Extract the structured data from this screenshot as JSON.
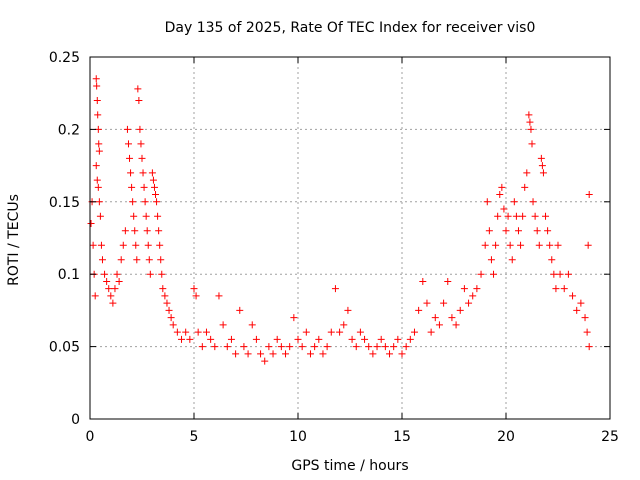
{
  "chart_data": {
    "type": "scatter",
    "title": "Day 135 of 2025, Rate Of TEC Index for receiver vis0",
    "xlabel": "GPS time / hours",
    "ylabel": "ROTI / TECUs",
    "xlim": [
      0,
      25
    ],
    "ylim": [
      0,
      0.25
    ],
    "xticks": [
      "0",
      "5",
      "10",
      "15",
      "20",
      "25"
    ],
    "yticks": [
      "0",
      "0.05",
      "0.1",
      "0.15",
      "0.2",
      "0.25"
    ],
    "grid": true,
    "legend": "none",
    "marker": "+",
    "color": "#ff0000",
    "points": [
      [
        0.05,
        0.135
      ],
      [
        0.1,
        0.15
      ],
      [
        0.15,
        0.12
      ],
      [
        0.2,
        0.1
      ],
      [
        0.25,
        0.085
      ],
      [
        0.3,
        0.235
      ],
      [
        0.32,
        0.23
      ],
      [
        0.35,
        0.22
      ],
      [
        0.37,
        0.21
      ],
      [
        0.4,
        0.2
      ],
      [
        0.42,
        0.19
      ],
      [
        0.45,
        0.185
      ],
      [
        0.3,
        0.175
      ],
      [
        0.35,
        0.165
      ],
      [
        0.4,
        0.16
      ],
      [
        0.45,
        0.15
      ],
      [
        0.5,
        0.14
      ],
      [
        0.55,
        0.12
      ],
      [
        0.6,
        0.11
      ],
      [
        0.7,
        0.1
      ],
      [
        0.8,
        0.095
      ],
      [
        0.9,
        0.09
      ],
      [
        1.0,
        0.085
      ],
      [
        1.1,
        0.08
      ],
      [
        1.2,
        0.09
      ],
      [
        1.3,
        0.1
      ],
      [
        1.4,
        0.095
      ],
      [
        1.5,
        0.11
      ],
      [
        1.6,
        0.12
      ],
      [
        1.7,
        0.13
      ],
      [
        1.8,
        0.2
      ],
      [
        1.85,
        0.19
      ],
      [
        1.9,
        0.18
      ],
      [
        1.95,
        0.17
      ],
      [
        2.0,
        0.16
      ],
      [
        2.05,
        0.15
      ],
      [
        2.1,
        0.14
      ],
      [
        2.15,
        0.13
      ],
      [
        2.2,
        0.12
      ],
      [
        2.25,
        0.11
      ],
      [
        2.3,
        0.228
      ],
      [
        2.35,
        0.22
      ],
      [
        2.4,
        0.2
      ],
      [
        2.45,
        0.19
      ],
      [
        2.5,
        0.18
      ],
      [
        2.55,
        0.17
      ],
      [
        2.6,
        0.16
      ],
      [
        2.65,
        0.15
      ],
      [
        2.7,
        0.14
      ],
      [
        2.75,
        0.13
      ],
      [
        2.8,
        0.12
      ],
      [
        2.85,
        0.11
      ],
      [
        2.9,
        0.1
      ],
      [
        3.0,
        0.17
      ],
      [
        3.05,
        0.165
      ],
      [
        3.1,
        0.16
      ],
      [
        3.15,
        0.155
      ],
      [
        3.2,
        0.15
      ],
      [
        3.25,
        0.14
      ],
      [
        3.3,
        0.13
      ],
      [
        3.35,
        0.12
      ],
      [
        3.4,
        0.11
      ],
      [
        3.45,
        0.1
      ],
      [
        3.5,
        0.09
      ],
      [
        3.6,
        0.085
      ],
      [
        3.7,
        0.08
      ],
      [
        3.8,
        0.075
      ],
      [
        3.9,
        0.07
      ],
      [
        4.0,
        0.065
      ],
      [
        4.2,
        0.06
      ],
      [
        4.4,
        0.055
      ],
      [
        4.6,
        0.06
      ],
      [
        4.8,
        0.055
      ],
      [
        5.0,
        0.09
      ],
      [
        5.1,
        0.085
      ],
      [
        5.2,
        0.06
      ],
      [
        5.4,
        0.05
      ],
      [
        5.6,
        0.06
      ],
      [
        5.8,
        0.055
      ],
      [
        6.0,
        0.05
      ],
      [
        6.2,
        0.085
      ],
      [
        6.4,
        0.065
      ],
      [
        6.6,
        0.05
      ],
      [
        6.8,
        0.055
      ],
      [
        7.0,
        0.045
      ],
      [
        7.2,
        0.075
      ],
      [
        7.4,
        0.05
      ],
      [
        7.6,
        0.045
      ],
      [
        7.8,
        0.065
      ],
      [
        8.0,
        0.055
      ],
      [
        8.2,
        0.045
      ],
      [
        8.4,
        0.04
      ],
      [
        8.6,
        0.05
      ],
      [
        8.8,
        0.045
      ],
      [
        9.0,
        0.055
      ],
      [
        9.2,
        0.05
      ],
      [
        9.4,
        0.045
      ],
      [
        9.6,
        0.05
      ],
      [
        9.8,
        0.07
      ],
      [
        10.0,
        0.055
      ],
      [
        10.2,
        0.05
      ],
      [
        10.4,
        0.06
      ],
      [
        10.6,
        0.045
      ],
      [
        10.8,
        0.05
      ],
      [
        11.0,
        0.055
      ],
      [
        11.2,
        0.045
      ],
      [
        11.4,
        0.05
      ],
      [
        11.6,
        0.06
      ],
      [
        11.8,
        0.09
      ],
      [
        12.0,
        0.06
      ],
      [
        12.2,
        0.065
      ],
      [
        12.4,
        0.075
      ],
      [
        12.6,
        0.055
      ],
      [
        12.8,
        0.05
      ],
      [
        13.0,
        0.06
      ],
      [
        13.2,
        0.055
      ],
      [
        13.4,
        0.05
      ],
      [
        13.6,
        0.045
      ],
      [
        13.8,
        0.05
      ],
      [
        14.0,
        0.055
      ],
      [
        14.2,
        0.05
      ],
      [
        14.4,
        0.045
      ],
      [
        14.6,
        0.05
      ],
      [
        14.8,
        0.055
      ],
      [
        15.0,
        0.045
      ],
      [
        15.2,
        0.05
      ],
      [
        15.4,
        0.055
      ],
      [
        15.6,
        0.06
      ],
      [
        15.8,
        0.075
      ],
      [
        16.0,
        0.095
      ],
      [
        16.2,
        0.08
      ],
      [
        16.4,
        0.06
      ],
      [
        16.6,
        0.07
      ],
      [
        16.8,
        0.065
      ],
      [
        17.0,
        0.08
      ],
      [
        17.2,
        0.095
      ],
      [
        17.4,
        0.07
      ],
      [
        17.6,
        0.065
      ],
      [
        17.8,
        0.075
      ],
      [
        18.0,
        0.09
      ],
      [
        18.2,
        0.08
      ],
      [
        18.4,
        0.085
      ],
      [
        18.6,
        0.09
      ],
      [
        18.8,
        0.1
      ],
      [
        19.0,
        0.12
      ],
      [
        19.1,
        0.15
      ],
      [
        19.2,
        0.13
      ],
      [
        19.3,
        0.11
      ],
      [
        19.4,
        0.1
      ],
      [
        19.5,
        0.12
      ],
      [
        19.6,
        0.14
      ],
      [
        19.7,
        0.155
      ],
      [
        19.8,
        0.16
      ],
      [
        19.9,
        0.145
      ],
      [
        20.0,
        0.13
      ],
      [
        20.1,
        0.14
      ],
      [
        20.2,
        0.12
      ],
      [
        20.3,
        0.11
      ],
      [
        20.4,
        0.15
      ],
      [
        20.5,
        0.14
      ],
      [
        20.6,
        0.13
      ],
      [
        20.7,
        0.12
      ],
      [
        20.8,
        0.14
      ],
      [
        20.9,
        0.16
      ],
      [
        21.0,
        0.17
      ],
      [
        21.1,
        0.21
      ],
      [
        21.15,
        0.205
      ],
      [
        21.2,
        0.2
      ],
      [
        21.25,
        0.19
      ],
      [
        21.3,
        0.15
      ],
      [
        21.4,
        0.14
      ],
      [
        21.5,
        0.13
      ],
      [
        21.6,
        0.12
      ],
      [
        21.7,
        0.18
      ],
      [
        21.75,
        0.175
      ],
      [
        21.8,
        0.17
      ],
      [
        21.9,
        0.14
      ],
      [
        22.0,
        0.13
      ],
      [
        22.1,
        0.12
      ],
      [
        22.2,
        0.11
      ],
      [
        22.3,
        0.1
      ],
      [
        22.4,
        0.09
      ],
      [
        22.5,
        0.12
      ],
      [
        22.6,
        0.1
      ],
      [
        22.8,
        0.09
      ],
      [
        23.0,
        0.1
      ],
      [
        23.2,
        0.085
      ],
      [
        23.4,
        0.075
      ],
      [
        23.6,
        0.08
      ],
      [
        23.8,
        0.07
      ],
      [
        24.0,
        0.155
      ],
      [
        23.95,
        0.12
      ],
      [
        23.9,
        0.06
      ],
      [
        24.0,
        0.05
      ]
    ]
  }
}
